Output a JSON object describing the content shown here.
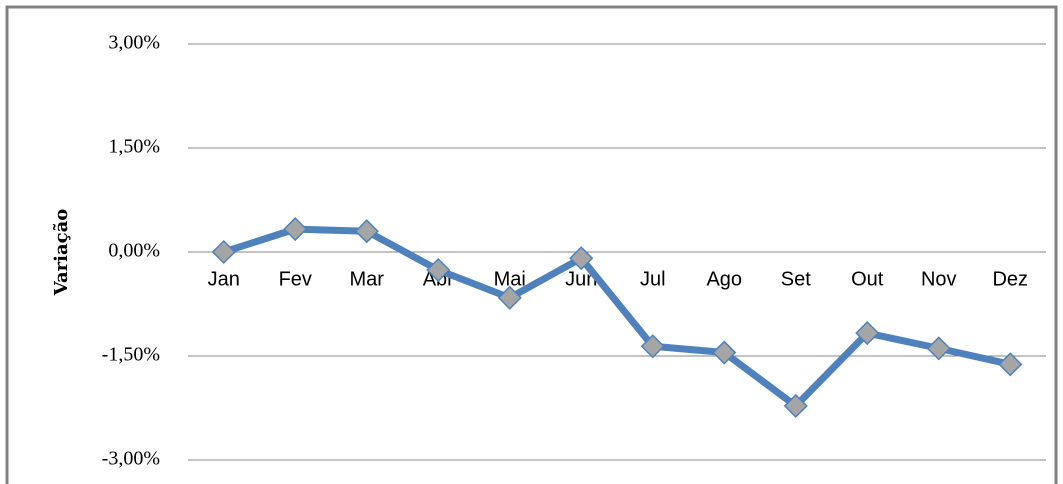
{
  "chart_data": {
    "type": "line",
    "ylabel": "Variação",
    "categories": [
      "Jan",
      "Fev",
      "Mar",
      "Abr",
      "Mai",
      "Jun",
      "Jul",
      "Ago",
      "Set",
      "Out",
      "Nov",
      "Dez"
    ],
    "values": [
      0.0,
      0.33,
      0.3,
      -0.26,
      -0.66,
      -0.09,
      -1.36,
      -1.45,
      -2.22,
      -1.17,
      -1.39,
      -1.62
    ],
    "color": "#4f81bd",
    "marker_color": "#a5a5a5",
    "ylim": [
      -3,
      3
    ],
    "yticks": [
      {
        "value": -3,
        "label": "-3,00%"
      },
      {
        "value": -1.5,
        "label": "-1,50%"
      },
      {
        "value": 0,
        "label": "0,00%"
      },
      {
        "value": 1.5,
        "label": "1,50%"
      },
      {
        "value": 3,
        "label": "3,00%"
      }
    ],
    "grid": true
  }
}
